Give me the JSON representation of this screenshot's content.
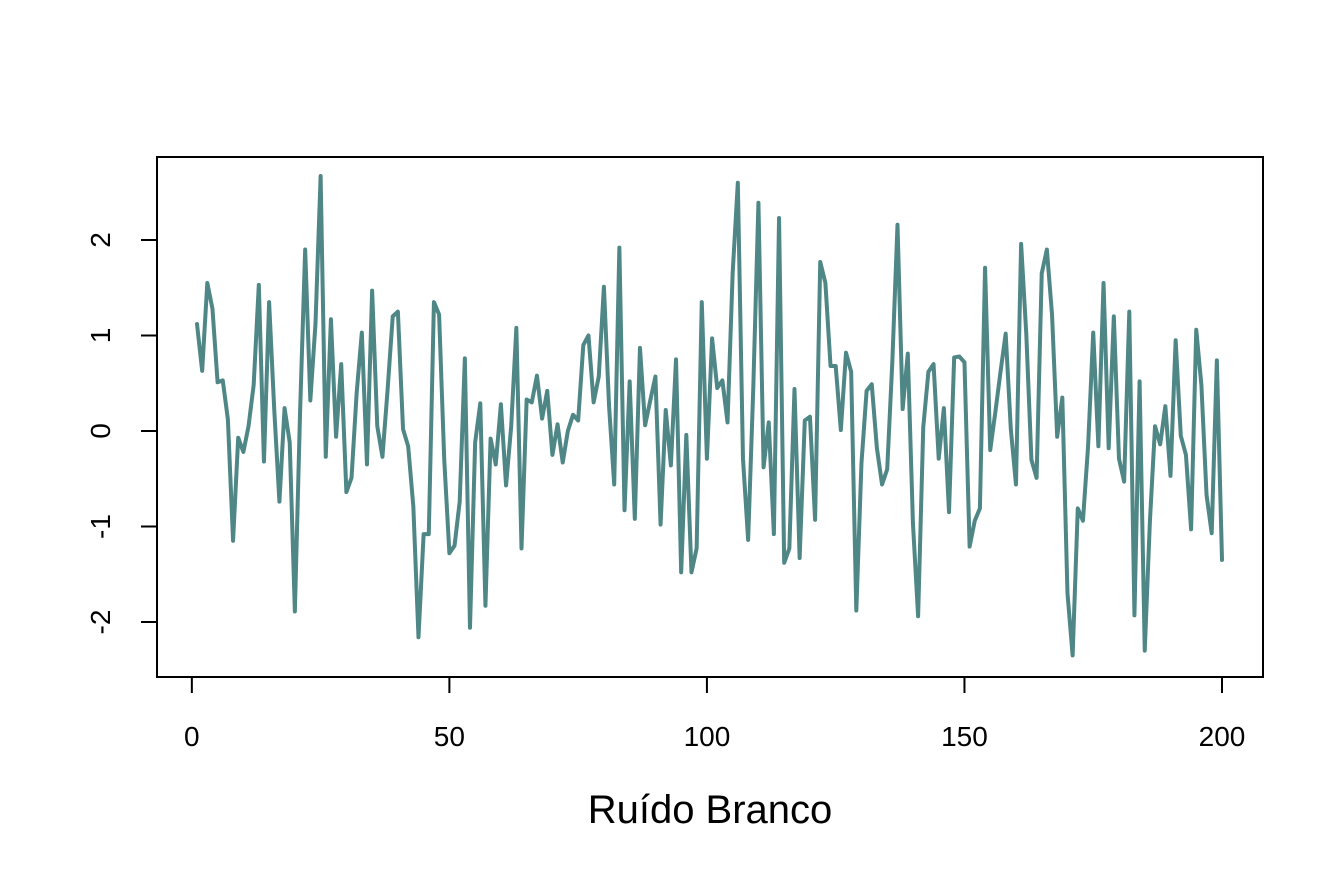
{
  "chart_data": {
    "type": "line",
    "xlabel": "Ruído Branco",
    "ylabel": "",
    "title": "",
    "xlim": [
      1,
      200
    ],
    "ylim": [
      -2.35,
      2.65
    ],
    "grid": false,
    "x_ticks": [
      0,
      50,
      100,
      150,
      200
    ],
    "y_ticks": [
      -2,
      -1,
      0,
      1,
      2
    ],
    "line_color": "#4F8686",
    "series": [
      {
        "values": [
          1.12,
          0.63,
          1.55,
          1.28,
          0.51,
          0.53,
          0.12,
          -1.15,
          -0.07,
          -0.22,
          0.05,
          0.48,
          1.53,
          -0.32,
          1.35,
          0.22,
          -0.74,
          0.24,
          -0.12,
          -1.89,
          0.18,
          1.9,
          0.32,
          1.12,
          2.67,
          -0.27,
          1.17,
          -0.06,
          0.7,
          -0.64,
          -0.49,
          0.4,
          1.03,
          -0.35,
          1.47,
          0.05,
          -0.27,
          0.43,
          1.2,
          1.25,
          0.02,
          -0.16,
          -0.79,
          -2.16,
          -1.08,
          -1.08,
          1.35,
          1.22,
          -0.3,
          -1.28,
          -1.2,
          -0.74,
          0.76,
          -2.06,
          -0.12,
          0.29,
          -1.83,
          -0.08,
          -0.35,
          0.28,
          -0.57,
          0.05,
          1.08,
          -1.23,
          0.33,
          0.3,
          0.58,
          0.13,
          0.42,
          -0.25,
          0.07,
          -0.33,
          0.0,
          0.17,
          0.11,
          0.9,
          1.0,
          0.3,
          0.57,
          1.51,
          0.26,
          -0.56,
          1.92,
          -0.83,
          0.52,
          -0.92,
          0.87,
          0.06,
          0.32,
          0.57,
          -0.98,
          0.22,
          -0.36,
          0.75,
          -1.48,
          -0.04,
          -1.48,
          -1.23,
          1.35,
          -0.29,
          0.97,
          0.45,
          0.53,
          0.09,
          1.66,
          2.6,
          -0.29,
          -1.14,
          0.45,
          2.39,
          -0.38,
          0.09,
          -1.08,
          2.23,
          -1.38,
          -1.23,
          0.44,
          -1.33,
          0.11,
          0.15,
          -0.93,
          1.77,
          1.55,
          0.68,
          0.68,
          0.01,
          0.82,
          0.62,
          -1.88,
          -0.34,
          0.42,
          0.49,
          -0.18,
          -0.56,
          -0.4,
          0.73,
          2.16,
          0.23,
          0.81,
          -0.97,
          -1.94,
          0.04,
          0.62,
          0.7,
          -0.29,
          0.24,
          -0.85,
          0.77,
          0.78,
          0.72,
          -1.21,
          -0.94,
          -0.81,
          1.71,
          -0.2,
          0.2,
          0.62,
          1.02,
          0.02,
          -0.56,
          1.96,
          1.02,
          -0.3,
          -0.49,
          1.65,
          1.9,
          1.22,
          -0.06,
          0.35,
          -1.7,
          -2.35,
          -0.81,
          -0.94,
          -0.16,
          1.03,
          -0.16,
          1.55,
          -0.18,
          1.2,
          -0.29,
          -0.53,
          1.25,
          -1.93,
          0.52,
          -2.3,
          -0.95,
          0.05,
          -0.14,
          0.26,
          -0.47,
          0.95,
          -0.05,
          -0.25,
          -1.03,
          1.06,
          0.48,
          -0.67,
          -1.07,
          0.74,
          -1.35
        ]
      }
    ]
  }
}
